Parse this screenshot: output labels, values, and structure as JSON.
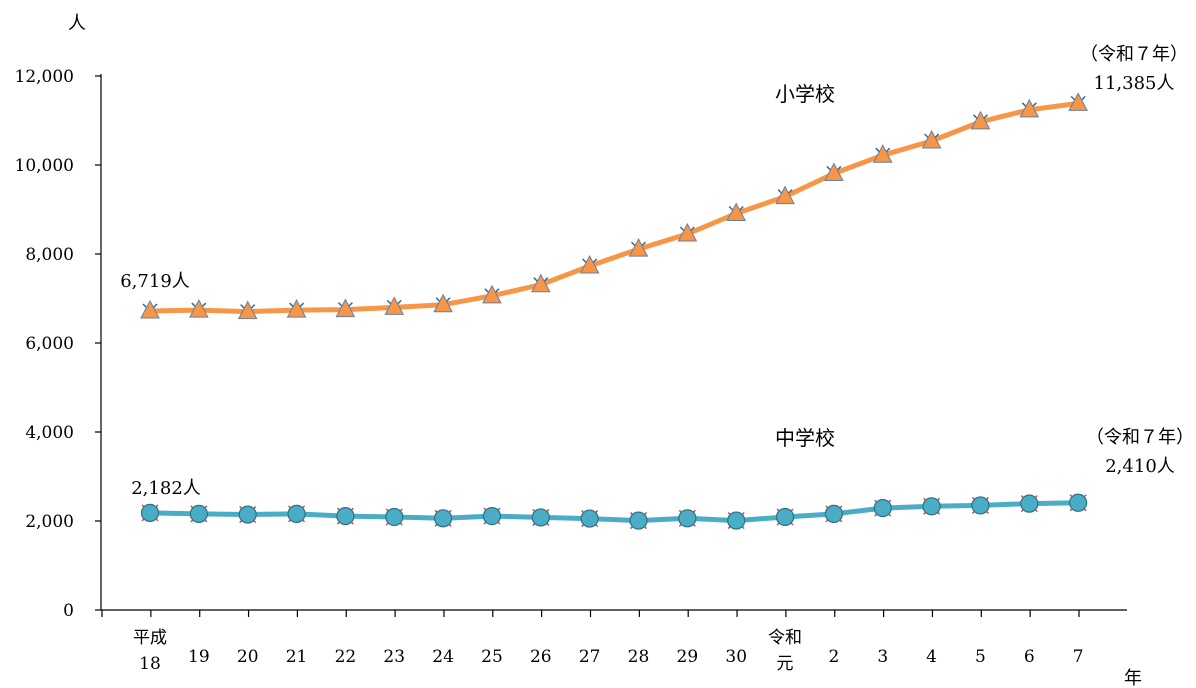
{
  "chart_data": {
    "type": "line",
    "y_unit": "人",
    "x_unit": "年",
    "ylim": [
      0,
      12000
    ],
    "yticks": [
      0,
      2000,
      4000,
      6000,
      8000,
      10000,
      12000
    ],
    "ytick_labels": [
      "0",
      "2,000",
      "4,000",
      "6,000",
      "8,000",
      "10,000",
      "12,000"
    ],
    "grid": false,
    "categories": [
      [
        "平成",
        "18"
      ],
      [
        "19"
      ],
      [
        "20"
      ],
      [
        "21"
      ],
      [
        "22"
      ],
      [
        "23"
      ],
      [
        "24"
      ],
      [
        "25"
      ],
      [
        "26"
      ],
      [
        "27"
      ],
      [
        "28"
      ],
      [
        "29"
      ],
      [
        "30"
      ],
      [
        "令和",
        "元"
      ],
      [
        "2"
      ],
      [
        "3"
      ],
      [
        "4"
      ],
      [
        "5"
      ],
      [
        "6"
      ],
      [
        "7"
      ]
    ],
    "series": [
      {
        "name": "小学校",
        "color": "#f79646",
        "marker": "triangle",
        "values": [
          6719,
          6740,
          6705,
          6740,
          6750,
          6800,
          6860,
          7060,
          7310,
          7730,
          8110,
          8450,
          8910,
          9290,
          9810,
          10220,
          10540,
          10970,
          11240,
          11385
        ]
      },
      {
        "name": "中学校",
        "color": "#4bacc6",
        "marker": "circle",
        "values": [
          2182,
          2160,
          2145,
          2160,
          2110,
          2090,
          2060,
          2110,
          2080,
          2055,
          2010,
          2060,
          2010,
          2090,
          2160,
          2290,
          2330,
          2350,
          2390,
          2410
        ]
      }
    ],
    "annotations": {
      "elem_start": "6,719人",
      "elem_end_era": "（令和７年）",
      "elem_end": "11,385人",
      "mid_start": "2,182人",
      "mid_end_era": "（令和７年）",
      "mid_end": "2,410人"
    }
  }
}
